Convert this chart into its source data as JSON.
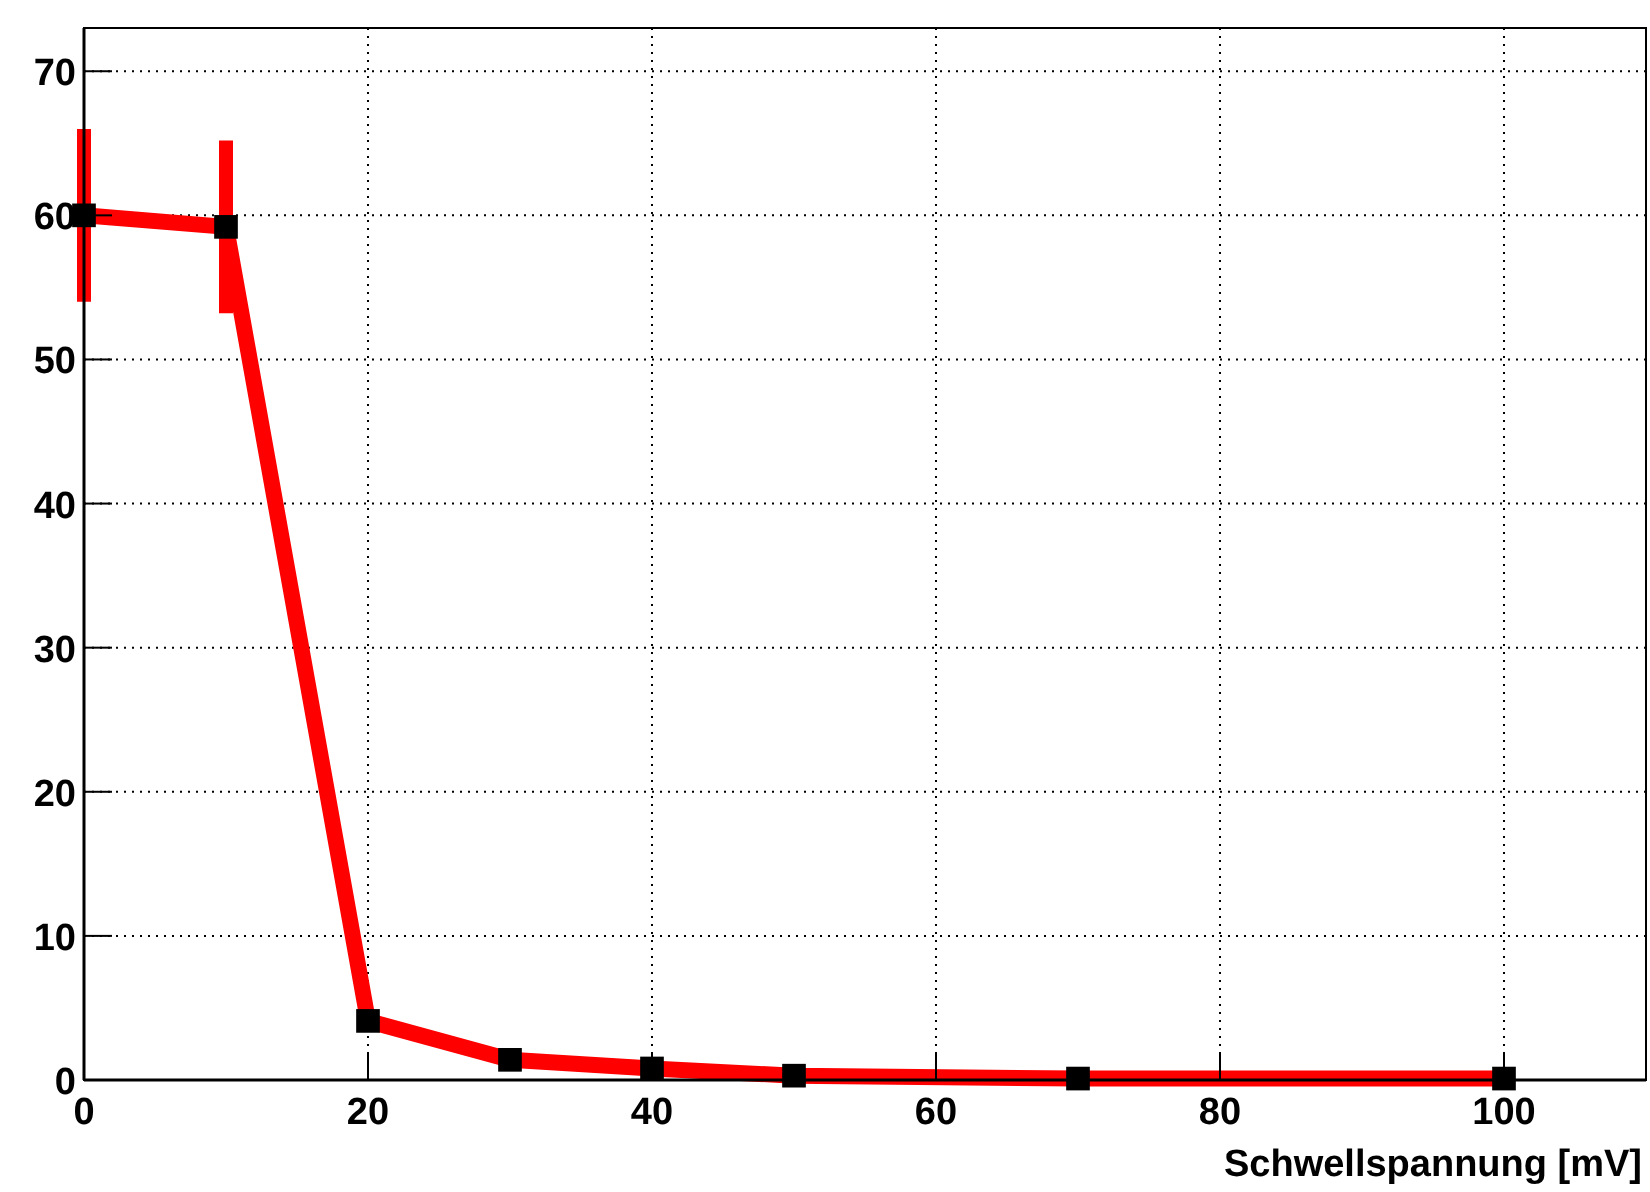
{
  "chart_data": {
    "type": "line",
    "xlabel": "Schwellspannung [mV]",
    "x": [
      0,
      10,
      20,
      30,
      40,
      50,
      70,
      100
    ],
    "series": [
      {
        "color": "#ff0000",
        "values": [
          60,
          59.2,
          4.1,
          1.4,
          0.8,
          0.3,
          0.1,
          0.1
        ],
        "errors": [
          6,
          6,
          null,
          null,
          null,
          null,
          null,
          null
        ]
      }
    ],
    "xlim": [
      0,
      110
    ],
    "xticks": [
      0,
      20,
      40,
      60,
      80,
      100
    ],
    "ylim": [
      0,
      73
    ],
    "yticks": [
      0,
      10,
      20,
      30,
      40,
      50,
      60,
      70
    ],
    "grid": true,
    "marker": "square",
    "line_style": "solid"
  }
}
